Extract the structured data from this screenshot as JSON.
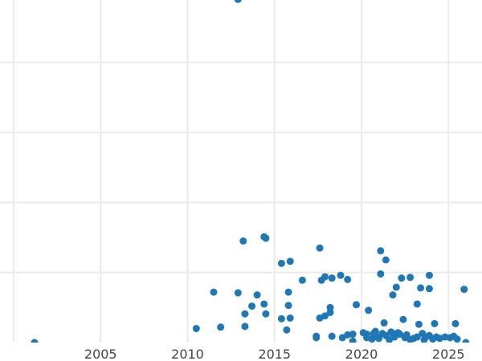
{
  "chart_data": {
    "type": "scatter",
    "title": "",
    "xlabel": "",
    "ylabel": "",
    "x_ticks": [
      2005,
      2010,
      2015,
      2020,
      2025
    ],
    "x_gridlines": [
      2000,
      2005,
      2010,
      2015,
      2020,
      2025
    ],
    "y_gridlines_units": [
      0,
      1,
      2,
      3,
      4
    ],
    "y_tick_labels_visible": false,
    "xlim": [
      2000,
      2026.5
    ],
    "grid": true,
    "marker_color": "#1f77b4",
    "note": "y values expressed in gridline units (y-axis labels not visible)",
    "points": [
      [
        2001.2,
        0.0
      ],
      [
        2010.5,
        0.2
      ],
      [
        2011.5,
        0.72
      ],
      [
        2011.9,
        0.22
      ],
      [
        2012.9,
        4.9
      ],
      [
        2012.9,
        0.71
      ],
      [
        2013.2,
        1.45
      ],
      [
        2013.3,
        0.41
      ],
      [
        2013.3,
        0.23
      ],
      [
        2013.7,
        0.52
      ],
      [
        2014.0,
        0.68
      ],
      [
        2014.4,
        1.51
      ],
      [
        2014.5,
        1.49
      ],
      [
        2014.4,
        0.55
      ],
      [
        2014.5,
        0.41
      ],
      [
        2015.4,
        1.13
      ],
      [
        2015.4,
        0.34
      ],
      [
        2015.7,
        0.18
      ],
      [
        2015.8,
        0.72
      ],
      [
        2015.8,
        0.53
      ],
      [
        2015.9,
        1.16
      ],
      [
        2015.9,
        0.35
      ],
      [
        2016.6,
        0.89
      ],
      [
        2017.4,
        0.07
      ],
      [
        2017.4,
        0.09
      ],
      [
        2017.6,
        1.35
      ],
      [
        2017.6,
        0.35
      ],
      [
        2017.7,
        0.89
      ],
      [
        2017.9,
        0.38
      ],
      [
        2017.9,
        0.94
      ],
      [
        2018.3,
        0.92
      ],
      [
        2018.2,
        0.5
      ],
      [
        2018.2,
        0.43
      ],
      [
        2018.3,
        0.09
      ],
      [
        2018.9,
        0.07
      ],
      [
        2018.8,
        0.96
      ],
      [
        2019.2,
        0.9
      ],
      [
        2019.2,
        0.11
      ],
      [
        2019.5,
        0.12
      ],
      [
        2019.5,
        0.02
      ],
      [
        2019.7,
        0.54
      ],
      [
        2020.1,
        0.14
      ],
      [
        2020.3,
        0.12
      ],
      [
        2020.3,
        0.07
      ],
      [
        2020.4,
        0.46
      ],
      [
        2020.6,
        0.05
      ],
      [
        2020.7,
        0.13
      ],
      [
        2020.8,
        0.16
      ],
      [
        2020.9,
        0.08
      ],
      [
        2021.0,
        0.06
      ],
      [
        2021.1,
        1.31
      ],
      [
        2021.1,
        0.98
      ],
      [
        2021.2,
        0.13
      ],
      [
        2021.3,
        0.28
      ],
      [
        2021.4,
        1.18
      ],
      [
        2021.4,
        0.1
      ],
      [
        2021.6,
        0.04
      ],
      [
        2021.7,
        0.15
      ],
      [
        2021.8,
        0.13
      ],
      [
        2021.8,
        0.68
      ],
      [
        2021.9,
        0.08
      ],
      [
        2022.0,
        0.79
      ],
      [
        2022.1,
        0.14
      ],
      [
        2022.2,
        0.12
      ],
      [
        2022.3,
        0.92
      ],
      [
        2022.4,
        0.33
      ],
      [
        2022.5,
        0.07
      ],
      [
        2022.6,
        0.11
      ],
      [
        2022.8,
        0.93
      ],
      [
        2022.8,
        0.04
      ],
      [
        2023.0,
        0.06
      ],
      [
        2023.2,
        0.08
      ],
      [
        2023.2,
        0.55
      ],
      [
        2023.3,
        0.26
      ],
      [
        2023.4,
        0.78
      ],
      [
        2023.5,
        0.13
      ],
      [
        2023.6,
        0.04
      ],
      [
        2023.7,
        0.08
      ],
      [
        2023.9,
        0.96
      ],
      [
        2023.9,
        0.77
      ],
      [
        2023.9,
        0.1
      ],
      [
        2024.1,
        0.05
      ],
      [
        2024.2,
        0.27
      ],
      [
        2024.3,
        0.08
      ],
      [
        2024.5,
        0.06
      ],
      [
        2024.8,
        0.08
      ],
      [
        2025.1,
        0.07
      ],
      [
        2025.3,
        0.09
      ],
      [
        2025.4,
        0.27
      ],
      [
        2025.5,
        0.05
      ],
      [
        2025.9,
        0.76
      ],
      [
        2026.0,
        0.0
      ]
    ]
  }
}
